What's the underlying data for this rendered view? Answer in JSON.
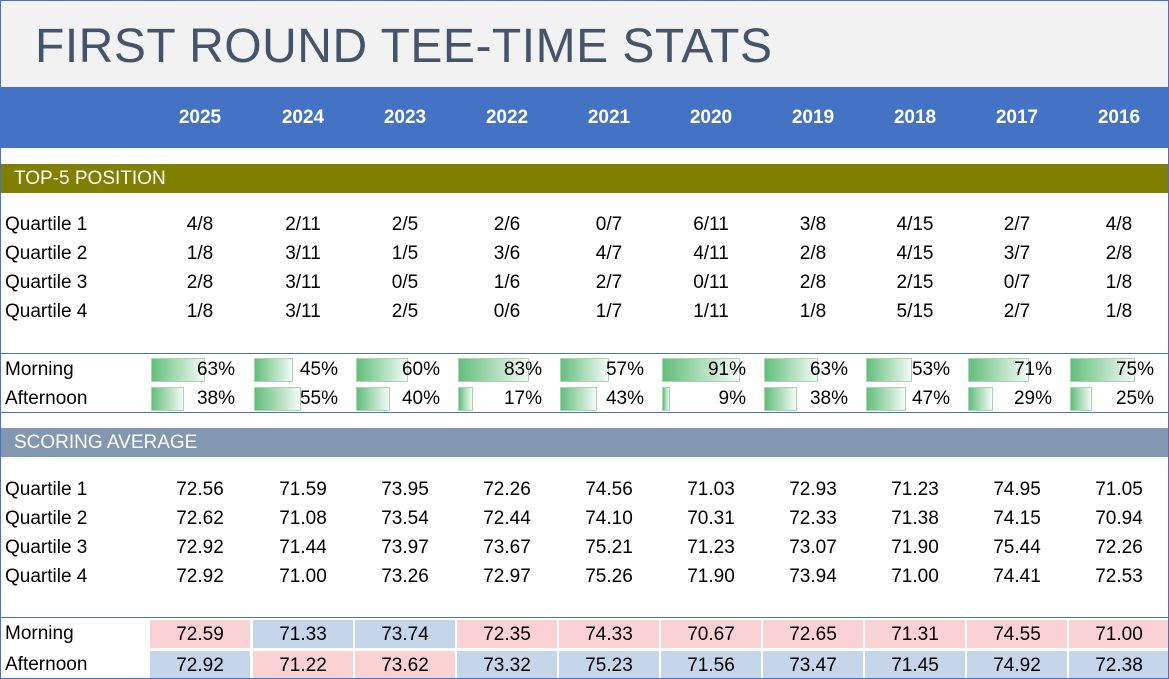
{
  "title": "FIRST ROUND TEE-TIME STATS",
  "years": [
    "2025",
    "2024",
    "2023",
    "2022",
    "2021",
    "2020",
    "2019",
    "2018",
    "2017",
    "2016"
  ],
  "sections": {
    "top5": "TOP-5 POSITION",
    "scoring": "SCORING AVERAGE"
  },
  "top5_rows": [
    {
      "label": "Quartile 1",
      "values": [
        "4/8",
        "2/11",
        "2/5",
        "2/6",
        "0/7",
        "6/11",
        "3/8",
        "4/15",
        "2/7",
        "4/8"
      ]
    },
    {
      "label": "Quartile 2",
      "values": [
        "1/8",
        "3/11",
        "1/5",
        "3/6",
        "4/7",
        "4/11",
        "2/8",
        "4/15",
        "3/7",
        "2/8"
      ]
    },
    {
      "label": "Quartile 3",
      "values": [
        "2/8",
        "3/11",
        "0/5",
        "1/6",
        "2/7",
        "0/11",
        "2/8",
        "2/15",
        "0/7",
        "1/8"
      ]
    },
    {
      "label": "Quartile 4",
      "values": [
        "1/8",
        "3/11",
        "2/5",
        "0/6",
        "1/7",
        "1/11",
        "1/8",
        "5/15",
        "2/7",
        "1/8"
      ]
    }
  ],
  "top5_pct_rows": [
    {
      "label": "Morning",
      "values": [
        "63%",
        "45%",
        "60%",
        "83%",
        "57%",
        "91%",
        "63%",
        "53%",
        "71%",
        "75%"
      ],
      "fractions": [
        0.63,
        0.45,
        0.6,
        0.83,
        0.57,
        0.91,
        0.63,
        0.53,
        0.71,
        0.75
      ]
    },
    {
      "label": "Afternoon",
      "values": [
        "38%",
        "55%",
        "40%",
        "17%",
        "43%",
        "9%",
        "38%",
        "47%",
        "29%",
        "25%"
      ],
      "fractions": [
        0.38,
        0.55,
        0.4,
        0.17,
        0.43,
        0.09,
        0.38,
        0.47,
        0.29,
        0.25
      ]
    }
  ],
  "scoring_rows": [
    {
      "label": "Quartile 1",
      "values": [
        "72.56",
        "71.59",
        "73.95",
        "72.26",
        "74.56",
        "71.03",
        "72.93",
        "71.23",
        "74.95",
        "71.05"
      ]
    },
    {
      "label": "Quartile 2",
      "values": [
        "72.62",
        "71.08",
        "73.54",
        "72.44",
        "74.10",
        "70.31",
        "72.33",
        "71.38",
        "74.15",
        "70.94"
      ]
    },
    {
      "label": "Quartile 3",
      "values": [
        "72.92",
        "71.44",
        "73.97",
        "73.67",
        "75.21",
        "71.23",
        "73.07",
        "71.90",
        "75.44",
        "72.26"
      ]
    },
    {
      "label": "Quartile 4",
      "values": [
        "72.92",
        "71.00",
        "73.26",
        "72.97",
        "75.26",
        "71.90",
        "73.94",
        "71.00",
        "74.41",
        "72.53"
      ]
    }
  ],
  "scoring_avg_rows": [
    {
      "label": "Morning",
      "values": [
        "72.59",
        "71.33",
        "73.74",
        "72.35",
        "74.33",
        "70.67",
        "72.65",
        "71.31",
        "74.55",
        "71.00"
      ],
      "highlight": [
        "red",
        "blue",
        "blue",
        "red",
        "red",
        "red",
        "red",
        "red",
        "red",
        "red"
      ]
    },
    {
      "label": "Afternoon",
      "values": [
        "72.92",
        "71.22",
        "73.62",
        "73.32",
        "75.23",
        "71.56",
        "73.47",
        "71.45",
        "74.92",
        "72.38"
      ],
      "highlight": [
        "blue",
        "red",
        "red",
        "blue",
        "blue",
        "blue",
        "blue",
        "blue",
        "blue",
        "blue"
      ]
    }
  ],
  "colors": {
    "header_blue": "#4472c4",
    "olive": "#808000",
    "slate": "#8497b0",
    "heat_red": "#fbd2d4",
    "heat_blue": "#c5d5ea",
    "bar_green": "#63be7b"
  }
}
